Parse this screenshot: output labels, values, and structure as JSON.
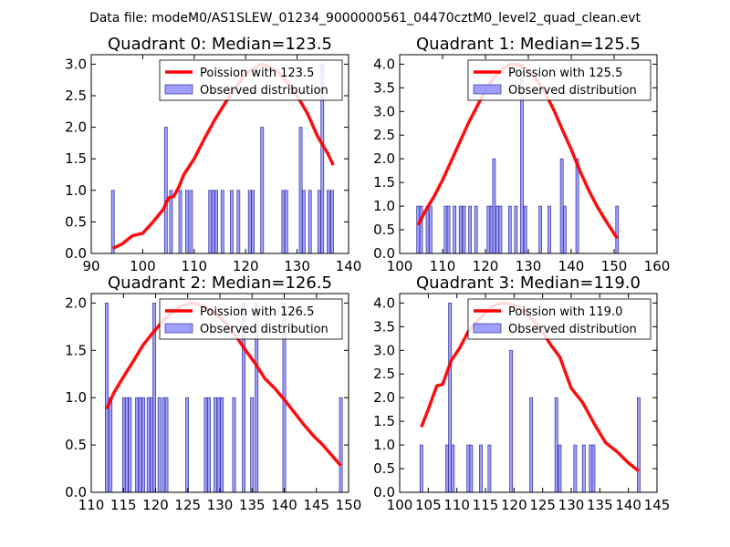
{
  "figure": {
    "suptitle": "Data file: modeM0/AS1SLEW_01234_9000000561_04470cztM0_level2_quad_clean.evt"
  },
  "colors": {
    "poisson_line": "#ff0000",
    "bar_fill": "#7f7fff",
    "bar_edge": "#333399",
    "axes": "#000000"
  },
  "chart_data": [
    {
      "type": "bar",
      "title": "Quadrant 0: Median=123.5",
      "xlim": [
        90,
        140
      ],
      "ylim": [
        0,
        3.15
      ],
      "xticks": [
        90,
        100,
        110,
        120,
        130,
        140
      ],
      "yticks": [
        0.0,
        0.5,
        1.0,
        1.5,
        2.0,
        2.5,
        3.0
      ],
      "legend": [
        "Poission with 123.5",
        "Observed distribution"
      ],
      "legend_position": "top-right",
      "bar_width": 0.55,
      "bars": [
        [
          94.2,
          1
        ],
        [
          104.5,
          2
        ],
        [
          105.5,
          1
        ],
        [
          107.3,
          1
        ],
        [
          108.6,
          1
        ],
        [
          109.4,
          1
        ],
        [
          113.1,
          1
        ],
        [
          113.7,
          1
        ],
        [
          114.3,
          1
        ],
        [
          115.5,
          1
        ],
        [
          117.3,
          1
        ],
        [
          118.6,
          1
        ],
        [
          120.8,
          1
        ],
        [
          121.4,
          1
        ],
        [
          123.2,
          2
        ],
        [
          127.3,
          1
        ],
        [
          127.9,
          1
        ],
        [
          130.7,
          2
        ],
        [
          131.3,
          1
        ],
        [
          132.5,
          1
        ],
        [
          134.3,
          1
        ],
        [
          134.9,
          3
        ],
        [
          136.1,
          1
        ],
        [
          136.8,
          1
        ]
      ],
      "line": {
        "x": [
          94.2,
          96,
          98,
          100,
          102,
          104,
          105,
          106,
          107,
          108,
          110,
          112,
          114,
          116,
          118,
          120,
          122,
          123,
          124,
          126,
          128,
          130,
          132,
          134,
          136,
          137
        ],
        "y": [
          0.08,
          0.15,
          0.28,
          0.32,
          0.5,
          0.7,
          0.88,
          0.9,
          1.05,
          1.25,
          1.5,
          1.82,
          2.12,
          2.38,
          2.62,
          2.85,
          2.95,
          3.0,
          2.98,
          2.9,
          2.72,
          2.5,
          2.22,
          1.85,
          1.58,
          1.4
        ]
      }
    },
    {
      "type": "bar",
      "title": "Quadrant 1: Median=125.5",
      "xlim": [
        100,
        160
      ],
      "ylim": [
        0,
        4.2
      ],
      "xticks": [
        100,
        110,
        120,
        130,
        140,
        150,
        160
      ],
      "yticks": [
        0.0,
        0.5,
        1.0,
        1.5,
        2.0,
        2.5,
        3.0,
        3.5,
        4.0
      ],
      "legend": [
        "Poission with 125.5",
        "Observed distribution"
      ],
      "legend_position": "top-right",
      "bar_width": 0.65,
      "bars": [
        [
          104.3,
          1
        ],
        [
          105,
          1
        ],
        [
          106.5,
          1
        ],
        [
          107.2,
          1
        ],
        [
          110.7,
          1
        ],
        [
          111.4,
          1
        ],
        [
          112.8,
          1
        ],
        [
          114.2,
          1
        ],
        [
          115,
          1
        ],
        [
          116.4,
          1
        ],
        [
          117.8,
          1
        ],
        [
          120.7,
          1
        ],
        [
          121.4,
          1
        ],
        [
          122,
          2
        ],
        [
          122.8,
          1
        ],
        [
          123.5,
          1
        ],
        [
          125.7,
          1
        ],
        [
          127.1,
          1
        ],
        [
          128.5,
          4
        ],
        [
          129.3,
          1
        ],
        [
          132.8,
          1
        ],
        [
          134.9,
          1
        ],
        [
          137.8,
          2
        ],
        [
          138.5,
          1
        ],
        [
          141.4,
          2
        ],
        [
          150.7,
          1
        ]
      ],
      "line": {
        "x": [
          104.3,
          106,
          108,
          110,
          112,
          114,
          116,
          118,
          120,
          122,
          124,
          126,
          128,
          130,
          132,
          134,
          136,
          138,
          140,
          142,
          144,
          146,
          148,
          150.7
        ],
        "y": [
          0.6,
          0.9,
          1.2,
          1.55,
          1.95,
          2.35,
          2.75,
          3.1,
          3.45,
          3.72,
          3.9,
          4.0,
          3.98,
          3.88,
          3.66,
          3.38,
          3.02,
          2.6,
          2.2,
          1.75,
          1.35,
          1.0,
          0.7,
          0.32
        ]
      }
    },
    {
      "type": "bar",
      "title": "Quadrant 2: Median=126.5",
      "xlim": [
        110,
        150
      ],
      "ylim": [
        0,
        2.1
      ],
      "xticks": [
        110,
        115,
        120,
        125,
        130,
        135,
        140,
        145,
        150
      ],
      "yticks": [
        0.0,
        0.5,
        1.0,
        1.5,
        2.0
      ],
      "legend": [
        "Poission with 126.5",
        "Observed distribution"
      ],
      "legend_position": "top-right",
      "bar_width": 0.45,
      "bars": [
        [
          112.4,
          2
        ],
        [
          113,
          1
        ],
        [
          115.1,
          1
        ],
        [
          115.5,
          1
        ],
        [
          116,
          1
        ],
        [
          117.1,
          1
        ],
        [
          117.6,
          1
        ],
        [
          118.1,
          1
        ],
        [
          118.9,
          1
        ],
        [
          119.4,
          1
        ],
        [
          119.8,
          2
        ],
        [
          120.6,
          1
        ],
        [
          121.3,
          1
        ],
        [
          121.7,
          1
        ],
        [
          124.9,
          1
        ],
        [
          127.8,
          1
        ],
        [
          128.3,
          1
        ],
        [
          129.3,
          1
        ],
        [
          129.8,
          1
        ],
        [
          130.3,
          1
        ],
        [
          132.2,
          1
        ],
        [
          133.7,
          2
        ],
        [
          135,
          1
        ],
        [
          135.7,
          2
        ],
        [
          140,
          2
        ],
        [
          148.8,
          1
        ]
      ],
      "line": {
        "x": [
          112.4,
          113.5,
          115,
          116.5,
          118,
          119.5,
          121,
          122.5,
          124,
          125.5,
          126.5,
          128,
          129.5,
          131,
          132.5,
          134,
          135.5,
          137,
          138.5,
          140,
          141.5,
          143,
          144.5,
          146,
          148.8
        ],
        "y": [
          0.88,
          1.05,
          1.22,
          1.38,
          1.55,
          1.68,
          1.8,
          1.9,
          1.97,
          2.0,
          1.99,
          1.95,
          1.88,
          1.78,
          1.65,
          1.5,
          1.36,
          1.2,
          1.1,
          0.98,
          0.85,
          0.72,
          0.6,
          0.5,
          0.28
        ]
      }
    },
    {
      "type": "bar",
      "title": "Quadrant 3: Median=119.0",
      "xlim": [
        100,
        145
      ],
      "ylim": [
        0,
        4.2
      ],
      "xticks": [
        100,
        105,
        110,
        115,
        120,
        125,
        130,
        135,
        140,
        145
      ],
      "yticks": [
        0.0,
        0.5,
        1.0,
        1.5,
        2.0,
        2.5,
        3.0,
        3.5,
        4.0
      ],
      "legend": [
        "Poission with 119.0",
        "Observed distribution"
      ],
      "legend_position": "top-right",
      "bar_width": 0.5,
      "bars": [
        [
          103.8,
          1
        ],
        [
          108.3,
          1
        ],
        [
          108.8,
          4
        ],
        [
          109.3,
          1
        ],
        [
          112,
          1
        ],
        [
          112.5,
          1
        ],
        [
          114.2,
          1
        ],
        [
          115.7,
          1
        ],
        [
          119.5,
          3
        ],
        [
          123,
          2
        ],
        [
          127.4,
          2
        ],
        [
          128,
          1
        ],
        [
          130.7,
          1
        ],
        [
          132.2,
          1
        ],
        [
          133.4,
          1
        ],
        [
          133.9,
          1
        ],
        [
          141.8,
          2
        ]
      ],
      "line": {
        "x": [
          103.8,
          105,
          106.5,
          107.5,
          109,
          110.5,
          112,
          113.5,
          115,
          116.5,
          118,
          119,
          120.5,
          122,
          123.5,
          125,
          126.5,
          128,
          130,
          132,
          134,
          136,
          138,
          140,
          141.8
        ],
        "y": [
          1.38,
          1.75,
          2.25,
          2.28,
          2.78,
          3.05,
          3.4,
          3.6,
          3.8,
          3.95,
          4.0,
          3.99,
          3.93,
          3.8,
          3.62,
          3.38,
          3.1,
          2.86,
          2.2,
          1.9,
          1.45,
          1.05,
          0.86,
          0.62,
          0.45
        ]
      }
    }
  ]
}
